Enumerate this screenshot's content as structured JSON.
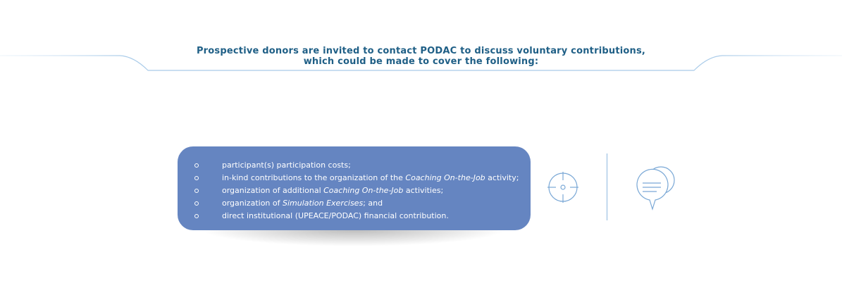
{
  "intro": {
    "line1": "Prospective donors are invited to contact PODAC to discuss voluntary contributions,",
    "line2": "which could be made to cover the following:"
  },
  "contributions": {
    "items": [
      {
        "text_before": "participant(s) participation costs;",
        "italic": "",
        "text_after": ""
      },
      {
        "text_before": "in-kind contributions to the organization of the ",
        "italic": "Coaching On-the-Job",
        "text_after": " activity;"
      },
      {
        "text_before": "organization of additional ",
        "italic": "Coaching On-the-Job",
        "text_after": " activities;"
      },
      {
        "text_before": "organization of ",
        "italic": "Simulation Exercises",
        "text_after": "; and"
      },
      {
        "text_before": "direct institutional (UPEACE/PODAC) financial contribution.",
        "italic": "",
        "text_after": ""
      }
    ]
  },
  "icons": {
    "crosshair": "crosshair-icon",
    "chat": "chat-bubbles-icon"
  },
  "colors": {
    "title": "#1f5f86",
    "panel": "#6585c1",
    "icon_stroke": "#7aa8d6"
  }
}
